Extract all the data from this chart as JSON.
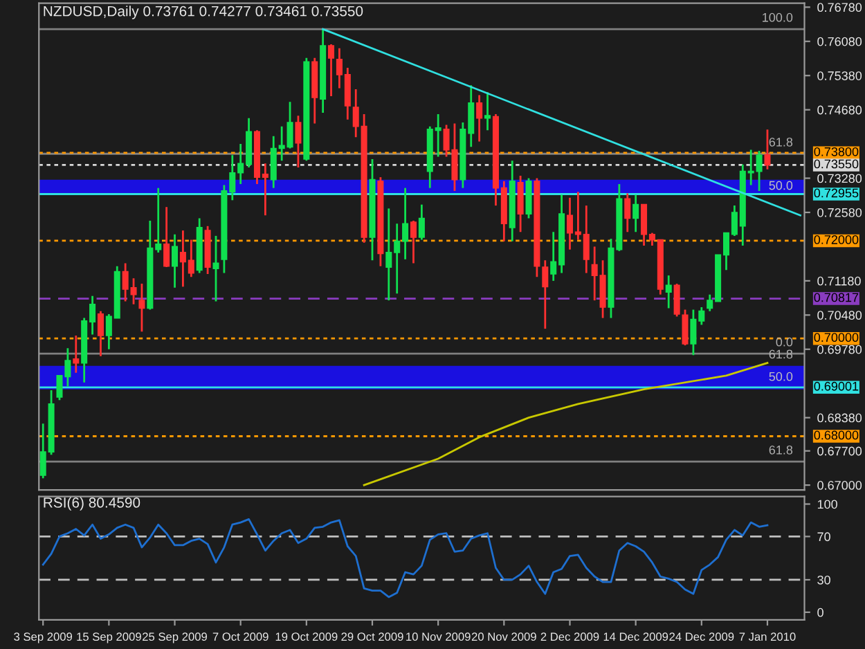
{
  "chart_data": [
    {
      "type": "candlestick",
      "title": "NZDUSD,Daily 0.73761 0.74277 0.73461 0.73550",
      "categories": [
        null,
        null,
        null,
        null,
        null,
        null,
        null,
        null,
        null,
        null,
        null,
        null,
        null,
        null,
        null,
        null,
        null,
        null,
        null,
        null,
        null,
        null,
        null,
        null,
        null,
        null,
        null,
        null,
        null,
        null,
        null,
        null,
        null,
        null,
        null,
        null,
        null,
        null,
        null,
        null,
        null,
        null,
        null,
        null,
        null,
        null,
        null,
        null,
        null,
        null,
        null,
        null,
        null,
        null,
        null,
        null,
        null,
        null,
        null,
        null,
        null,
        null,
        null,
        null,
        null,
        null,
        null,
        null,
        null,
        null,
        null,
        null,
        null,
        null,
        null,
        null,
        null,
        null,
        null,
        null,
        null,
        null,
        null,
        null,
        null,
        null,
        null,
        null,
        null,
        null,
        null,
        null,
        null
      ],
      "ohlc": [
        [
          0.672,
          0.6826,
          0.6714,
          0.6768
        ],
        [
          0.6768,
          0.6894,
          0.6762,
          0.6866
        ],
        [
          0.688,
          0.6924,
          0.6874,
          0.6924
        ],
        [
          0.6922,
          0.698,
          0.6902,
          0.6955
        ],
        [
          0.6958,
          0.7006,
          0.693,
          0.695
        ],
        [
          0.695,
          0.7042,
          0.691,
          0.7036
        ],
        [
          0.7034,
          0.7087,
          0.7008,
          0.707
        ],
        [
          0.705,
          0.7056,
          0.6964,
          0.7006
        ],
        [
          0.7006,
          0.705,
          0.6978,
          0.7045
        ],
        [
          0.7042,
          0.7148,
          0.7042,
          0.7137
        ],
        [
          0.7137,
          0.7154,
          0.7076,
          0.7101
        ],
        [
          0.7104,
          0.7123,
          0.707,
          0.709
        ],
        [
          0.7078,
          0.7112,
          0.7014,
          0.7062
        ],
        [
          0.7062,
          0.7241,
          0.7059,
          0.7185
        ],
        [
          0.7182,
          0.7308,
          0.7176,
          0.7193
        ],
        [
          0.7193,
          0.7269,
          0.7146,
          0.7148
        ],
        [
          0.7148,
          0.7213,
          0.7104,
          0.7188
        ],
        [
          0.7176,
          0.7221,
          0.7106,
          0.7157
        ],
        [
          0.716,
          0.7202,
          0.7126,
          0.7134
        ],
        [
          0.714,
          0.7246,
          0.7134,
          0.7227
        ],
        [
          0.7221,
          0.723,
          0.7132,
          0.7146
        ],
        [
          0.7143,
          0.721,
          0.7076,
          0.7154
        ],
        [
          0.7162,
          0.7314,
          0.7134,
          0.7302
        ],
        [
          0.73,
          0.7375,
          0.7283,
          0.7339
        ],
        [
          0.7339,
          0.7398,
          0.7316,
          0.7358
        ],
        [
          0.7356,
          0.7451,
          0.735,
          0.7423
        ],
        [
          0.7423,
          0.7426,
          0.7316,
          0.733
        ],
        [
          0.7336,
          0.7358,
          0.7252,
          0.733
        ],
        [
          0.7325,
          0.7414,
          0.7308,
          0.7389
        ],
        [
          0.7389,
          0.7434,
          0.7364,
          0.7395
        ],
        [
          0.7392,
          0.7484,
          0.7389,
          0.7442
        ],
        [
          0.7442,
          0.7456,
          0.735,
          0.74
        ],
        [
          0.7367,
          0.7574,
          0.7364,
          0.7566
        ],
        [
          0.7566,
          0.7574,
          0.744,
          0.7493
        ],
        [
          0.749,
          0.7633,
          0.7462,
          0.7599
        ],
        [
          0.7599,
          0.7602,
          0.7496,
          0.7574
        ],
        [
          0.7571,
          0.7594,
          0.7512,
          0.754
        ],
        [
          0.754,
          0.7554,
          0.7448,
          0.7476
        ],
        [
          0.7473,
          0.751,
          0.7412,
          0.7434
        ],
        [
          0.7434,
          0.7459,
          0.7196,
          0.7207
        ],
        [
          0.7207,
          0.7367,
          0.716,
          0.7325
        ],
        [
          0.7322,
          0.733,
          0.7148,
          0.7174
        ],
        [
          0.7146,
          0.7266,
          0.7078,
          0.7176
        ],
        [
          0.7176,
          0.7235,
          0.7092,
          0.7199
        ],
        [
          0.7199,
          0.7308,
          0.7162,
          0.7235
        ],
        [
          0.7238,
          0.7241,
          0.7154,
          0.7207
        ],
        [
          0.7207,
          0.7274,
          0.7202,
          0.7246
        ],
        [
          0.7342,
          0.7434,
          0.7308,
          0.7428
        ],
        [
          0.7426,
          0.7459,
          0.7372,
          0.7431
        ],
        [
          0.7428,
          0.7437,
          0.7372,
          0.7386
        ],
        [
          0.7386,
          0.744,
          0.7302,
          0.7325
        ],
        [
          0.7325,
          0.7442,
          0.7308,
          0.7428
        ],
        [
          0.742,
          0.7518,
          0.7392,
          0.7482
        ],
        [
          0.7482,
          0.7498,
          0.7403,
          0.7451
        ],
        [
          0.7451,
          0.7504,
          0.7426,
          0.7456
        ],
        [
          0.7454,
          0.7459,
          0.7272,
          0.7308
        ],
        [
          0.7308,
          0.7322,
          0.7199,
          0.7235
        ],
        [
          0.7227,
          0.7364,
          0.7199,
          0.7322
        ],
        [
          0.7319,
          0.7333,
          0.7218,
          0.7255
        ],
        [
          0.7255,
          0.7328,
          0.7246,
          0.7322
        ],
        [
          0.7322,
          0.7328,
          0.7126,
          0.7148
        ],
        [
          0.7146,
          0.716,
          0.702,
          0.7106
        ],
        [
          0.7132,
          0.7218,
          0.7118,
          0.7157
        ],
        [
          0.7151,
          0.7294,
          0.7134,
          0.7255
        ],
        [
          0.7252,
          0.7288,
          0.7182,
          0.7216
        ],
        [
          0.7218,
          0.73,
          0.7202,
          0.7213
        ],
        [
          0.7213,
          0.7272,
          0.7134,
          0.7162
        ],
        [
          0.7151,
          0.7188,
          0.7078,
          0.7129
        ],
        [
          0.7129,
          0.716,
          0.7042,
          0.7064
        ],
        [
          0.7064,
          0.7204,
          0.7042,
          0.7185
        ],
        [
          0.7182,
          0.7316,
          0.7179,
          0.7286
        ],
        [
          0.7286,
          0.7297,
          0.7218,
          0.7246
        ],
        [
          0.7246,
          0.7294,
          0.7218,
          0.7274
        ],
        [
          0.7274,
          0.7274,
          0.719,
          0.7213
        ],
        [
          0.7213,
          0.7216,
          0.719,
          0.7202
        ],
        [
          0.7202,
          0.7202,
          0.709,
          0.7101
        ],
        [
          0.7095,
          0.7129,
          0.7062,
          0.7109
        ],
        [
          0.7109,
          0.7112,
          0.7045,
          0.705
        ],
        [
          0.7048,
          0.7059,
          0.6986,
          0.6989
        ],
        [
          0.6989,
          0.7059,
          0.6966,
          0.7039
        ],
        [
          0.7036,
          0.7064,
          0.7028,
          0.7056
        ],
        [
          0.7062,
          0.709,
          0.7056,
          0.7078
        ],
        [
          0.7076,
          0.7171,
          0.7076,
          0.7171
        ],
        [
          0.7171,
          0.7216,
          0.714,
          0.7216
        ],
        [
          0.7213,
          0.7272,
          0.721,
          0.7258
        ],
        [
          0.723,
          0.7356,
          0.719,
          0.7342
        ],
        [
          0.7339,
          0.7386,
          0.7314,
          0.7342
        ],
        [
          0.7342,
          0.7384,
          0.7302,
          0.7375
        ],
        [
          0.73761,
          0.74277,
          0.73461,
          0.7355
        ],
        null,
        null,
        null,
        null
      ],
      "colors": [
        "#10e050",
        "#10e050",
        "#10e050",
        "#10e050",
        "#ff3030",
        "#10e050",
        "#10e050",
        "#ff3030",
        "#10e050",
        "#10e050",
        "#ff3030",
        "#ff3030",
        "#ff3030",
        "#10e050",
        "#10e050",
        "#ff3030",
        "#10e050",
        "#ff3030",
        "#ff3030",
        "#10e050",
        "#ff3030",
        "#10e050",
        "#10e050",
        "#10e050",
        "#10e050",
        "#10e050",
        "#ff3030",
        "#ff3030",
        "#10e050",
        "#10e050",
        "#10e050",
        "#ff3030",
        "#10e050",
        "#ff3030",
        "#10e050",
        "#ff3030",
        "#ff3030",
        "#ff3030",
        "#ff3030",
        "#ff3030",
        "#10e050",
        "#ff3030",
        "#10e050",
        "#10e050",
        "#10e050",
        "#ff3030",
        "#10e050",
        "#10e050",
        "#10e050",
        "#ff3030",
        "#ff3030",
        "#10e050",
        "#10e050",
        "#ff3030",
        "#10e050",
        "#ff3030",
        "#ff3030",
        "#10e050",
        "#ff3030",
        "#10e050",
        "#ff3030",
        "#ff3030",
        "#10e050",
        "#10e050",
        "#ff3030",
        "#ff3030",
        "#ff3030",
        "#ff3030",
        "#ff3030",
        "#10e050",
        "#10e050",
        "#ff3030",
        "#10e050",
        "#ff3030",
        "#ff3030",
        "#ff3030",
        "#10e050",
        "#ff3030",
        "#ff3030",
        "#10e050",
        "#10e050",
        "#10e050",
        "#10e050",
        "#10e050",
        "#10e050",
        "#10e050",
        "#10e050",
        "#10e050",
        "#ff3030",
        null,
        null,
        null,
        null
      ],
      "series": [
        {
          "type": "line",
          "color": "#30e0e0",
          "values": [
            null,
            null,
            null,
            null,
            null,
            null,
            null,
            null,
            null,
            null,
            null,
            null,
            null,
            null,
            null,
            null,
            null,
            null,
            null,
            null,
            null,
            null,
            null,
            null,
            null,
            null,
            null,
            null,
            null,
            null,
            null,
            null,
            null,
            null,
            0.7633,
            null,
            null,
            null,
            null,
            null,
            null,
            null,
            null,
            null,
            null,
            null,
            null,
            null,
            null,
            null,
            null,
            null,
            null,
            null,
            null,
            null,
            null,
            null,
            null,
            null,
            null,
            null,
            null,
            null,
            null,
            null,
            null,
            null,
            null,
            null,
            null,
            null,
            null,
            null,
            null,
            null,
            null,
            null,
            null,
            null,
            null,
            null,
            null,
            null,
            null,
            null,
            null,
            null,
            null,
            null,
            null,
            null,
            0.7252
          ]
        },
        {
          "type": "line",
          "color": "#c8c800",
          "values": [
            null,
            null,
            null,
            null,
            null,
            null,
            null,
            null,
            null,
            null,
            null,
            null,
            null,
            null,
            null,
            null,
            null,
            null,
            null,
            null,
            null,
            null,
            null,
            null,
            null,
            null,
            null,
            null,
            null,
            null,
            null,
            null,
            null,
            null,
            null,
            null,
            null,
            null,
            null,
            0.67,
            null,
            null,
            null,
            null,
            null,
            null,
            null,
            null,
            0.6754,
            null,
            null,
            null,
            null,
            0.6798,
            null,
            null,
            null,
            null,
            null,
            0.6838,
            null,
            null,
            null,
            null,
            null,
            0.6866,
            null,
            null,
            null,
            null,
            null,
            null,
            null,
            0.6896,
            null,
            null,
            null,
            null,
            null,
            null,
            null,
            null,
            null,
            0.6924,
            null,
            null,
            null,
            null,
            0.695,
            null,
            null,
            null,
            null
          ]
        }
      ],
      "ylim": [
        0.669,
        0.7686
      ],
      "yticks": [
        {
          "value": 0.7678,
          "label": "0.76780"
        },
        {
          "value": 0.7608,
          "label": "0.76080"
        },
        {
          "value": 0.7538,
          "label": "0.75380"
        },
        {
          "value": 0.7468,
          "label": "0.74680"
        },
        {
          "value": 0.7328,
          "label": "0.73280"
        },
        {
          "value": 0.7258,
          "label": "0.72580"
        },
        {
          "value": 0.7118,
          "label": "0.71180"
        },
        {
          "value": 0.7048,
          "label": "0.70480"
        },
        {
          "value": 0.6978,
          "label": "0.69780"
        },
        {
          "value": 0.6838,
          "label": "0.68380"
        },
        {
          "value": 0.677,
          "label": "0.67700"
        },
        {
          "value": 0.67,
          "label": "0.67000"
        }
      ],
      "tick_labels": "y",
      "bands": [
        {
          "axis": "y",
          "from": 0.7297,
          "to": 0.7325,
          "color": "#1a10e0",
          "label": "50.0"
        },
        {
          "axis": "y",
          "from": 0.6896,
          "to": 0.6944,
          "color": "#1a10e0",
          "label": "50.0"
        }
      ],
      "ref_lines": [
        {
          "axis": "y",
          "value": 0.7633,
          "color": "#808080",
          "line_style": "solid"
        },
        {
          "axis": "y",
          "value": 0.7378,
          "color": "#808080",
          "line_style": "solid"
        },
        {
          "axis": "y",
          "value": 0.6969,
          "color": "#808080",
          "line_style": "solid"
        },
        {
          "axis": "y",
          "value": 0.6748,
          "color": "#808080",
          "line_style": "solid"
        },
        {
          "axis": "y",
          "value": 0.738,
          "label": "0.73800",
          "color": "#ff9900",
          "line_style": "dotted"
        },
        {
          "axis": "y",
          "value": 0.7355,
          "label": "0.73550",
          "color": "#d8d8d8",
          "line_style": "dotted"
        },
        {
          "axis": "y",
          "value": 0.72955,
          "label": "0.72955",
          "color": "#30e0e0",
          "line_style": "solid"
        },
        {
          "axis": "y",
          "value": 0.72,
          "label": "0.72000",
          "color": "#ff9900",
          "line_style": "dotted"
        },
        {
          "axis": "y",
          "value": 0.70817,
          "label": "0.70817",
          "color": "#8a3cc0",
          "line_style": "dashed"
        },
        {
          "axis": "y",
          "value": 0.7,
          "label": "0.70000",
          "color": "#ff9900",
          "line_style": "dotted"
        },
        {
          "axis": "y",
          "value": 0.69001,
          "label": "0.69001",
          "color": "#30e0e0",
          "line_style": "solid"
        },
        {
          "axis": "y",
          "value": 0.68,
          "label": "0.68000",
          "color": "#ff9900",
          "line_style": "dotted"
        }
      ],
      "annotations": [
        {
          "text": "100.0",
          "y": 0.7633
        },
        {
          "text": "61.8",
          "y": 0.7378
        },
        {
          "text": "0.0",
          "y": 0.6969
        },
        {
          "text": "61.8",
          "y": 0.6944
        },
        {
          "text": "61.8",
          "y": 0.6748
        }
      ]
    },
    {
      "type": "line",
      "title": "RSI(6) 80.4590",
      "categories": [
        "3 Sep 2009",
        null,
        null,
        null,
        null,
        null,
        null,
        null,
        "15 Sep 2009",
        null,
        null,
        null,
        null,
        null,
        null,
        null,
        "25 Sep 2009",
        null,
        null,
        null,
        null,
        null,
        null,
        null,
        "7 Oct 2009",
        null,
        null,
        null,
        null,
        null,
        null,
        null,
        "19 Oct 2009",
        null,
        null,
        null,
        null,
        null,
        null,
        null,
        "29 Oct 2009",
        null,
        null,
        null,
        null,
        null,
        null,
        null,
        "10 Nov 2009",
        null,
        null,
        null,
        null,
        null,
        null,
        null,
        "20 Nov 2009",
        null,
        null,
        null,
        null,
        null,
        null,
        null,
        "2 Dec 2009",
        null,
        null,
        null,
        null,
        null,
        null,
        null,
        "14 Dec 2009",
        null,
        null,
        null,
        null,
        null,
        null,
        null,
        "24 Dec 2009",
        null,
        null,
        null,
        null,
        null,
        null,
        null,
        "7 Jan 2010",
        null,
        null,
        null,
        null
      ],
      "series": [
        {
          "color": "#1e6fd0",
          "values": [
            44,
            54,
            70,
            73,
            77,
            71,
            81,
            68,
            72,
            78,
            81,
            78,
            60,
            69,
            81,
            73,
            62,
            62,
            66,
            68,
            63,
            46,
            60,
            81,
            83,
            86,
            72,
            57,
            66,
            73,
            76,
            64,
            68,
            78,
            79,
            83,
            85,
            61,
            52,
            22,
            20,
            20,
            14,
            18,
            37,
            35,
            43,
            67,
            72,
            73,
            56,
            57,
            68,
            71,
            73,
            41,
            30,
            30,
            35,
            43,
            28,
            17,
            37,
            40,
            52,
            53,
            41,
            33,
            28,
            28,
            57,
            64,
            61,
            56,
            46,
            33,
            31,
            28,
            21,
            17,
            39,
            44,
            51,
            67,
            76,
            71,
            83,
            79,
            80.459,
            null,
            null,
            null,
            null
          ]
        }
      ],
      "ylim": [
        -7,
        107
      ],
      "yticks": [
        0,
        30,
        70,
        100
      ],
      "ref_lines": [
        {
          "axis": "y",
          "value": 70,
          "color": "#c0c0c0",
          "line_style": "dashed"
        },
        {
          "axis": "y",
          "value": 30,
          "color": "#c0c0c0",
          "line_style": "dashed"
        }
      ]
    }
  ]
}
